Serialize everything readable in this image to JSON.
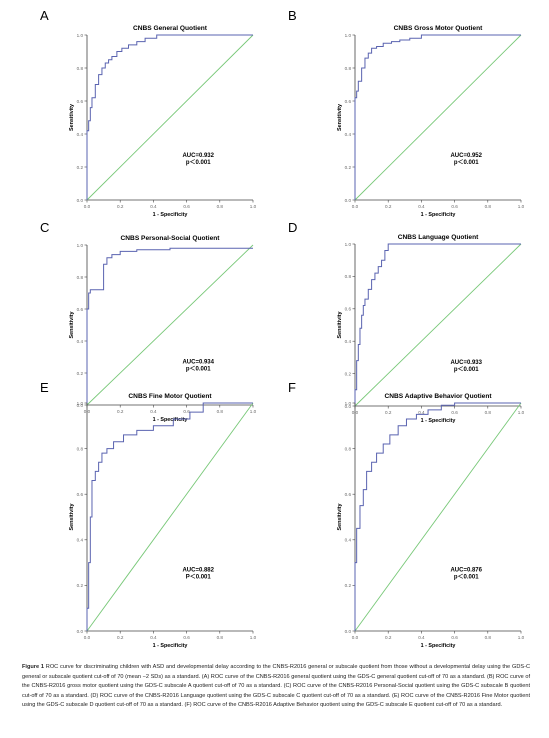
{
  "colors": {
    "roc": "#5a63b0",
    "reference": "#78c878",
    "axis": "#444444",
    "tick": "#666666",
    "text": "#000000"
  },
  "chart_data": [
    {
      "type": "line",
      "panel_letter": "A",
      "title": "CNBS General Quotient",
      "xlabel": "1 - Specificity",
      "ylabel": "Sensitivity",
      "xlim": [
        0,
        1
      ],
      "ylim": [
        0,
        1
      ],
      "xticks": [
        "0.0",
        "0.2",
        "0.4",
        "0.6",
        "0.8",
        "1.0"
      ],
      "yticks": [
        "0.0",
        "0.2",
        "0.4",
        "0.6",
        "0.8",
        "1.0"
      ],
      "auc_label": "AUC=0.932",
      "p_label": "p＜0.001",
      "series": [
        {
          "x": [
            0,
            0,
            0.01,
            0.01,
            0.02,
            0.02,
            0.03,
            0.03,
            0.05,
            0.05,
            0.07,
            0.07,
            0.09,
            0.09,
            0.11,
            0.11,
            0.13,
            0.13,
            0.15,
            0.15,
            0.18,
            0.18,
            0.21,
            0.21,
            0.25,
            0.25,
            0.3,
            0.3,
            0.35,
            0.35,
            0.42,
            0.42,
            0.5,
            0.6,
            0.8,
            1.0
          ],
          "y": [
            0,
            0.42,
            0.42,
            0.48,
            0.48,
            0.56,
            0.56,
            0.62,
            0.62,
            0.7,
            0.7,
            0.76,
            0.76,
            0.8,
            0.8,
            0.83,
            0.83,
            0.85,
            0.85,
            0.87,
            0.87,
            0.9,
            0.9,
            0.92,
            0.92,
            0.94,
            0.94,
            0.96,
            0.96,
            0.98,
            0.98,
            1.0,
            1.0,
            1.0,
            1.0,
            1.0
          ]
        },
        {
          "x": [
            0,
            1
          ],
          "y": [
            0,
            1
          ]
        }
      ]
    },
    {
      "type": "line",
      "panel_letter": "B",
      "title": "CNBS Gross Motor Quotient",
      "xlabel": "1 - Specificity",
      "ylabel": "Sensitivity",
      "xlim": [
        0,
        1
      ],
      "ylim": [
        0,
        1
      ],
      "xticks": [
        "0.0",
        "0.2",
        "0.4",
        "0.6",
        "0.8",
        "1.0"
      ],
      "yticks": [
        "0.0",
        "0.2",
        "0.4",
        "0.6",
        "0.8",
        "1.0"
      ],
      "auc_label": "AUC=0.952",
      "p_label": "p＜0.001",
      "series": [
        {
          "x": [
            0,
            0,
            0.01,
            0.01,
            0.02,
            0.02,
            0.04,
            0.04,
            0.06,
            0.06,
            0.08,
            0.08,
            0.1,
            0.1,
            0.13,
            0.13,
            0.17,
            0.17,
            0.22,
            0.22,
            0.27,
            0.27,
            0.33,
            0.33,
            0.4,
            0.4,
            0.6,
            0.8,
            1.0
          ],
          "y": [
            0,
            0.62,
            0.62,
            0.66,
            0.66,
            0.72,
            0.72,
            0.8,
            0.8,
            0.86,
            0.86,
            0.89,
            0.89,
            0.92,
            0.92,
            0.93,
            0.93,
            0.95,
            0.95,
            0.96,
            0.96,
            0.97,
            0.97,
            0.98,
            0.98,
            1.0,
            1.0,
            1.0,
            1.0
          ]
        },
        {
          "x": [
            0,
            1
          ],
          "y": [
            0,
            1
          ]
        }
      ]
    },
    {
      "type": "line",
      "panel_letter": "C",
      "title": "CNBS Personal-Social Quotient",
      "xlabel": "1 - Specificity",
      "ylabel": "Sensitivity",
      "xlim": [
        0,
        1
      ],
      "ylim": [
        0,
        1
      ],
      "xticks": [
        "0.0",
        "0.2",
        "0.4",
        "0.6",
        "0.8",
        "1.0"
      ],
      "yticks": [
        "0.0",
        "0.2",
        "0.4",
        "0.6",
        "0.8",
        "1.0"
      ],
      "auc_label": "AUC=0.934",
      "p_label": "p＜0.001",
      "series": [
        {
          "x": [
            0,
            0,
            0.01,
            0.01,
            0.02,
            0.02,
            0.1,
            0.1,
            0.12,
            0.12,
            0.15,
            0.15,
            0.2,
            0.2,
            0.3,
            0.3,
            0.5,
            0.5,
            1.0
          ],
          "y": [
            0,
            0.6,
            0.6,
            0.7,
            0.7,
            0.72,
            0.72,
            0.88,
            0.88,
            0.92,
            0.92,
            0.94,
            0.94,
            0.96,
            0.96,
            0.97,
            0.97,
            0.98,
            0.98
          ]
        },
        {
          "x": [
            0,
            1
          ],
          "y": [
            0,
            1
          ]
        }
      ]
    },
    {
      "type": "line",
      "panel_letter": "D",
      "title": "CNBS Language Quotient",
      "xlabel": "1 - Specificity",
      "ylabel": "Sensitivity",
      "xlim": [
        0,
        1
      ],
      "ylim": [
        0,
        1
      ],
      "xticks": [
        "0.0",
        "0.2",
        "0.4",
        "0.6",
        "0.8",
        "1.0"
      ],
      "yticks": [
        "0.0",
        "0.2",
        "0.4",
        "0.6",
        "0.8",
        "1.0"
      ],
      "auc_label": "AUC=0.933",
      "p_label": "p＜0.001",
      "series": [
        {
          "x": [
            0,
            0,
            0.01,
            0.01,
            0.02,
            0.02,
            0.03,
            0.03,
            0.04,
            0.04,
            0.05,
            0.05,
            0.06,
            0.06,
            0.08,
            0.08,
            0.1,
            0.1,
            0.12,
            0.12,
            0.14,
            0.14,
            0.16,
            0.16,
            0.18,
            0.18,
            0.2,
            0.2,
            0.3,
            0.6,
            1.0
          ],
          "y": [
            0,
            0.1,
            0.1,
            0.28,
            0.28,
            0.38,
            0.38,
            0.48,
            0.48,
            0.56,
            0.56,
            0.62,
            0.62,
            0.66,
            0.66,
            0.72,
            0.72,
            0.78,
            0.78,
            0.82,
            0.82,
            0.86,
            0.86,
            0.9,
            0.9,
            0.96,
            0.96,
            1.0,
            1.0,
            1.0,
            1.0
          ]
        },
        {
          "x": [
            0,
            1
          ],
          "y": [
            0,
            1
          ]
        }
      ]
    },
    {
      "type": "line",
      "panel_letter": "E",
      "title": "CNBS Fine Motor Quotient",
      "xlabel": "1 - Specificity",
      "ylabel": "Sensitivity",
      "xlim": [
        0,
        1
      ],
      "ylim": [
        0,
        1
      ],
      "xticks": [
        "0.0",
        "0.2",
        "0.4",
        "0.6",
        "0.8",
        "1.0"
      ],
      "yticks": [
        "0.0",
        "0.2",
        "0.4",
        "0.6",
        "0.8",
        "1.0"
      ],
      "auc_label": "AUC=0.882",
      "p_label": "P＜0.001",
      "series": [
        {
          "x": [
            0,
            0,
            0.01,
            0.01,
            0.02,
            0.02,
            0.03,
            0.03,
            0.05,
            0.05,
            0.07,
            0.07,
            0.09,
            0.09,
            0.12,
            0.12,
            0.16,
            0.16,
            0.22,
            0.22,
            0.3,
            0.3,
            0.4,
            0.4,
            0.52,
            0.52,
            0.62,
            0.62,
            0.7,
            0.7,
            1.0
          ],
          "y": [
            0,
            0.1,
            0.1,
            0.3,
            0.3,
            0.5,
            0.5,
            0.66,
            0.66,
            0.7,
            0.7,
            0.74,
            0.74,
            0.78,
            0.78,
            0.8,
            0.8,
            0.83,
            0.83,
            0.86,
            0.86,
            0.88,
            0.88,
            0.9,
            0.9,
            0.93,
            0.93,
            0.96,
            0.96,
            1.0,
            1.0
          ]
        },
        {
          "x": [
            0,
            1
          ],
          "y": [
            0,
            1
          ]
        }
      ]
    },
    {
      "type": "line",
      "panel_letter": "F",
      "title": "CNBS Adaptive Behavior Quotient",
      "xlabel": "1 - Specificity",
      "ylabel": "Sensitivity",
      "xlim": [
        0,
        1
      ],
      "ylim": [
        0,
        1
      ],
      "xticks": [
        "0.0",
        "0.2",
        "0.4",
        "0.6",
        "0.8",
        "1.0"
      ],
      "yticks": [
        "0.0",
        "0.2",
        "0.4",
        "0.6",
        "0.8",
        "1.0"
      ],
      "auc_label": "AUC=0.876",
      "p_label": "p＜0.001",
      "series": [
        {
          "x": [
            0,
            0,
            0.01,
            0.01,
            0.03,
            0.03,
            0.05,
            0.05,
            0.07,
            0.07,
            0.1,
            0.1,
            0.13,
            0.13,
            0.17,
            0.17,
            0.21,
            0.21,
            0.26,
            0.26,
            0.31,
            0.31,
            0.37,
            0.37,
            0.44,
            0.44,
            0.52,
            0.52,
            0.6,
            0.6,
            1.0
          ],
          "y": [
            0,
            0.3,
            0.3,
            0.45,
            0.45,
            0.55,
            0.55,
            0.62,
            0.62,
            0.7,
            0.7,
            0.74,
            0.74,
            0.78,
            0.78,
            0.82,
            0.82,
            0.86,
            0.86,
            0.9,
            0.9,
            0.93,
            0.93,
            0.95,
            0.95,
            0.97,
            0.97,
            0.99,
            0.99,
            1.0,
            1.0
          ]
        },
        {
          "x": [
            0,
            1
          ],
          "y": [
            0,
            1
          ]
        }
      ]
    }
  ],
  "caption": {
    "label": "Figure 1",
    "text": " ROC curve for discriminating children with ASD and developmental delay according to the CNBS-R2016 general or subscale quotient from those without a developmental delay using the GDS-C general or subscale quotient cut-off of 70 (mean −2 SDs) as a standard. (A) ROC curve of the CNBS-R2016 general quotient using the GDS-C general quotient cut-off of 70 as a standard. (B) ROC curve of the CNBS-R2016 gross motor quotient using the GDS-C subscale A quotient cut-off of 70 as a standard. (C) ROC curve of the CNBS-R2016 Personal-Social quotient using the GDS-C subscale B quotient cut-off of 70 as a standard. (D) ROC curve of the CNBS-R2016 Language quotient using the GDS-C subscale C quotient cut-off of 70 as a standard. (E) ROC curve of the CNBS-R2016 Fine Motor quotient using the GDS-C subscale D quotient cut-off of 70 as a standard. (F) ROC curve of the CNBS-R2016 Adaptive Behavior quotient using the GDS-C subscale E quotient cut-off of 70 as a standard."
  }
}
